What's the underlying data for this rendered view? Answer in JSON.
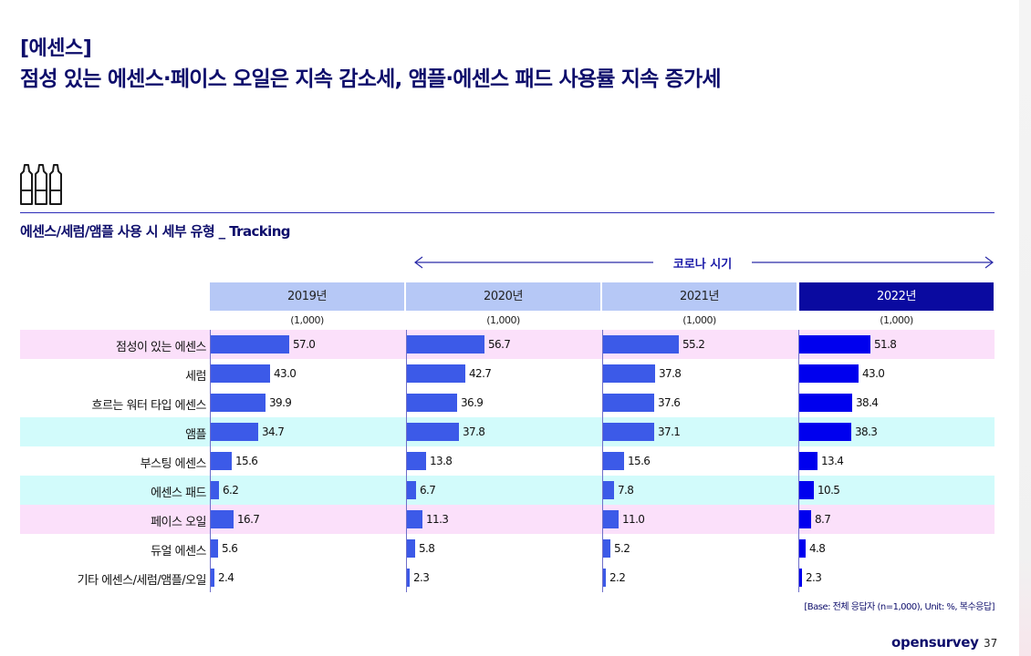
{
  "header": {
    "section_title": "[에센스]",
    "headline": "점성 있는 에센스·페이스 오일은 지속 감소세, 앰플·에센스 패드 사용률 지속 증가세"
  },
  "subtitle": "에센스/세럼/앰플 사용 시 세부 유형 _ Tracking",
  "period_label": "코로나 시기",
  "colors": {
    "bar_default": "#3c5ae8",
    "bar_latest": "#0000ee",
    "header_default": "#b6c8f6",
    "header_latest": "#0a0aa0",
    "band_pink": "#fbe0fa",
    "band_cyan": "#d2fbfb"
  },
  "chart_data": {
    "type": "bar",
    "orientation": "horizontal-small-multiples",
    "unit": "%",
    "categories": [
      "점성이 있는 에센스",
      "세럼",
      "흐르는 워터 타입 에센스",
      "앰플",
      "부스팅 에센스",
      "에센스 패드",
      "페이스 오일",
      "듀얼 에센스",
      "기타 에센스/세럼/앰플/오일"
    ],
    "row_highlight": [
      "pink",
      "none",
      "none",
      "cyan",
      "none",
      "cyan",
      "pink",
      "none",
      "none"
    ],
    "series": [
      {
        "name": "2019년",
        "n": "(1,000)",
        "values": [
          57.0,
          43.0,
          39.9,
          34.7,
          15.6,
          6.2,
          16.7,
          5.6,
          2.4
        ]
      },
      {
        "name": "2020년",
        "n": "(1,000)",
        "values": [
          56.7,
          42.7,
          36.9,
          37.8,
          13.8,
          6.7,
          11.3,
          5.8,
          2.3
        ]
      },
      {
        "name": "2021년",
        "n": "(1,000)",
        "values": [
          55.2,
          37.8,
          37.6,
          37.1,
          15.6,
          7.8,
          11.0,
          5.2,
          2.2
        ]
      },
      {
        "name": "2022년",
        "n": "(1,000)",
        "values": [
          51.8,
          43.0,
          38.4,
          38.3,
          13.4,
          10.5,
          8.7,
          4.8,
          2.3
        ]
      }
    ],
    "xlim": [
      0,
      120
    ]
  },
  "footer": {
    "base_note": "[Base: 전체 응답자 (n=1,000), Unit: %, 복수응답]",
    "brand": "opensurvey",
    "page_number": "37"
  }
}
